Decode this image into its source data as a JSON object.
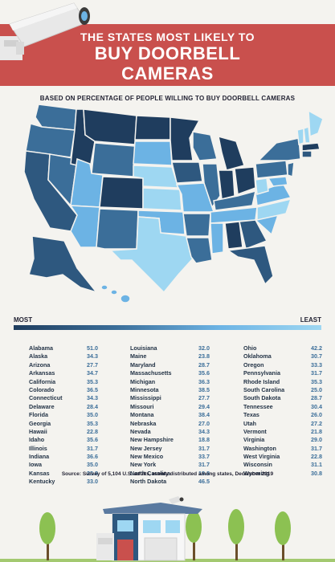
{
  "title": {
    "line1": "THE STATES MOST LIKELY TO",
    "line2": "BUY DOORBELL",
    "line3": "CAMERAS"
  },
  "subtitle": "BASED ON PERCENTAGE OF PEOPLE WILLING TO BUY DOORBELL CAMERAS",
  "legend": {
    "most": "MOST",
    "least": "LEAST"
  },
  "colors": {
    "banner": "#c9504d",
    "darkest": "#1f3d5e",
    "dark": "#2e587f",
    "mid": "#3b6e99",
    "light": "#6cb3e4",
    "lightest": "#9ed7f2"
  },
  "columns": [
    [
      {
        "state": "Alabama",
        "value": "51.0"
      },
      {
        "state": "Alaska",
        "value": "34.3"
      },
      {
        "state": "Arizona",
        "value": "27.7"
      },
      {
        "state": "Arkansas",
        "value": "34.7"
      },
      {
        "state": "California",
        "value": "35.3"
      },
      {
        "state": "Colorado",
        "value": "36.5"
      },
      {
        "state": "Connecticut",
        "value": "34.3"
      },
      {
        "state": "Delaware",
        "value": "28.4"
      },
      {
        "state": "Florida",
        "value": "35.0"
      },
      {
        "state": "Georgia",
        "value": "35.3"
      },
      {
        "state": "Hawaii",
        "value": "22.8"
      },
      {
        "state": "Idaho",
        "value": "35.6"
      },
      {
        "state": "Illinois",
        "value": "31.7"
      },
      {
        "state": "Indiana",
        "value": "36.6"
      },
      {
        "state": "Iowa",
        "value": "35.0"
      },
      {
        "state": "Kansas",
        "value": "23.8"
      },
      {
        "state": "Kentucky",
        "value": "33.0"
      }
    ],
    [
      {
        "state": "Louisiana",
        "value": "32.0"
      },
      {
        "state": "Maine",
        "value": "23.8"
      },
      {
        "state": "Maryland",
        "value": "28.7"
      },
      {
        "state": "Massachusetts",
        "value": "35.6"
      },
      {
        "state": "Michigan",
        "value": "36.3"
      },
      {
        "state": "Minnesota",
        "value": "38.5"
      },
      {
        "state": "Mississippi",
        "value": "27.7"
      },
      {
        "state": "Missouri",
        "value": "29.4"
      },
      {
        "state": "Montana",
        "value": "38.4"
      },
      {
        "state": "Nebraska",
        "value": "27.0"
      },
      {
        "state": "Nevada",
        "value": "34.3"
      },
      {
        "state": "New Hampshire",
        "value": "18.8"
      },
      {
        "state": "New Jersey",
        "value": "31.7"
      },
      {
        "state": "New Mexico",
        "value": "33.7"
      },
      {
        "state": "New York",
        "value": "31.7"
      },
      {
        "state": "North Carolina",
        "value": "18.8"
      },
      {
        "state": "North Dakota",
        "value": "46.5"
      }
    ],
    [
      {
        "state": "Ohio",
        "value": "42.2"
      },
      {
        "state": "Oklahoma",
        "value": "30.7"
      },
      {
        "state": "Oregon",
        "value": "33.3"
      },
      {
        "state": "Pennsylvania",
        "value": "31.7"
      },
      {
        "state": "Rhode Island",
        "value": "35.3"
      },
      {
        "state": "South Carolina",
        "value": "25.0"
      },
      {
        "state": "South Dakota",
        "value": "28.7"
      },
      {
        "state": "Tennessee",
        "value": "30.4"
      },
      {
        "state": "Texas",
        "value": "26.0"
      },
      {
        "state": "Utah",
        "value": "27.2"
      },
      {
        "state": "Vermont",
        "value": "21.8"
      },
      {
        "state": "Virginia",
        "value": "29.0"
      },
      {
        "state": "Washington",
        "value": "31.7"
      },
      {
        "state": "West Virginia",
        "value": "22.8"
      },
      {
        "state": "Wisconsin",
        "value": "31.1"
      },
      {
        "state": "Wyoming",
        "value": "30.8"
      }
    ]
  ],
  "source": "Source: Survey of 5,104 U.S. adults, evenly distributed among states, December 2019"
}
